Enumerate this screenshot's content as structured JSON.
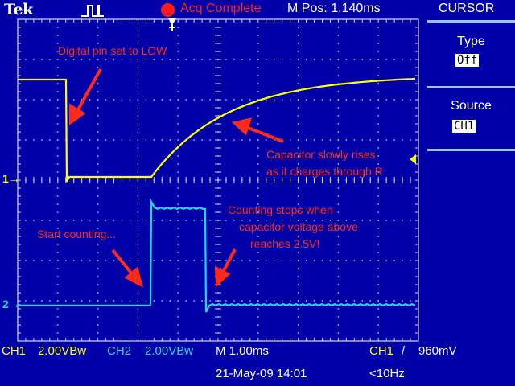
{
  "header": {
    "brand": "Tek",
    "trigger_status": "Acq Complete",
    "main_position": "M Pos: 1.140ms"
  },
  "menu": {
    "title": "CURSOR",
    "items": [
      {
        "label": "Type",
        "value": "Off"
      },
      {
        "label": "Source",
        "value": "CH1"
      }
    ]
  },
  "markers": {
    "ch1": "1",
    "ch2": "2"
  },
  "annotations": {
    "pin_low": "Digital pin set to LOW",
    "cap_rises_1": "Capacitor slowly rises",
    "cap_rises_2": "as it charges through R",
    "start_counting": "Start counting...",
    "stops_1": "Counting stops when",
    "stops_2": "capacitor voltage above",
    "stops_3": "reaches 2.5V!"
  },
  "status_bar": {
    "ch1_label": "CH1",
    "ch1_scale": "2.00VBw",
    "ch2_label": "CH2",
    "ch2_scale": "2.00VBw",
    "timebase": "M 1.00ms",
    "trigger_source": "CH1",
    "trigger_slope": "/",
    "trigger_level": "960mV",
    "date_time": "21-May-09 14:01",
    "frequency": "<10Hz"
  },
  "colors": {
    "background": "#0000a8",
    "graticule": "#d8d8d8",
    "ch1": "#ffff00",
    "ch2": "#28d6f0",
    "annotation": "#ff2a1a",
    "acq_indicator": "#ff1a1a"
  },
  "icons": {
    "trigger": "pulse-trigger-icon",
    "acquisition": "red-dot-icon",
    "arrow": "red-arrow-icon"
  }
}
